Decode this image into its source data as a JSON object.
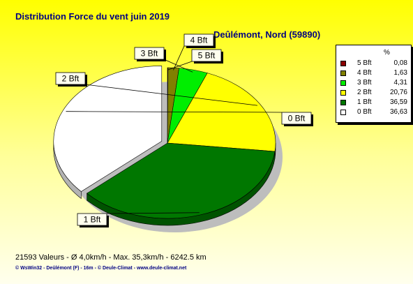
{
  "title": "Distribution Force du vent  juin 2019",
  "subtitle": "Deûlémont, Nord (59890)",
  "legend_header": "%",
  "chart_data": {
    "type": "pie",
    "title": "Distribution Force du vent  juin 2019",
    "subtitle": "Deûlémont, Nord (59890)",
    "legend_placement": "right",
    "slices": [
      {
        "label": "5 Bft",
        "value": 0.08,
        "value_text": "0,08",
        "color": "#8B0000"
      },
      {
        "label": "4 Bft",
        "value": 1.63,
        "value_text": "1,63",
        "color": "#808000"
      },
      {
        "label": "3 Bft",
        "value": 4.31,
        "value_text": "4,31",
        "color": "#00EE00"
      },
      {
        "label": "2 Bft",
        "value": 20.76,
        "value_text": "20,76",
        "color": "#FFFF00"
      },
      {
        "label": "1 Bft",
        "value": 36.59,
        "value_text": "36,59",
        "color": "#007700"
      },
      {
        "label": "0 Bft",
        "value": 36.63,
        "value_text": "36,63",
        "color": "#FFFFFF"
      }
    ]
  },
  "footer": {
    "stats": "21593 Valeurs   -   Ø 4,0km/h  -  Max. 35,3km/h   -   6242.5 km",
    "credit": "© WsWin32  -  Deûlémont (F) - 16m  -  © Deule-Climat - www.deule-climat.net"
  }
}
